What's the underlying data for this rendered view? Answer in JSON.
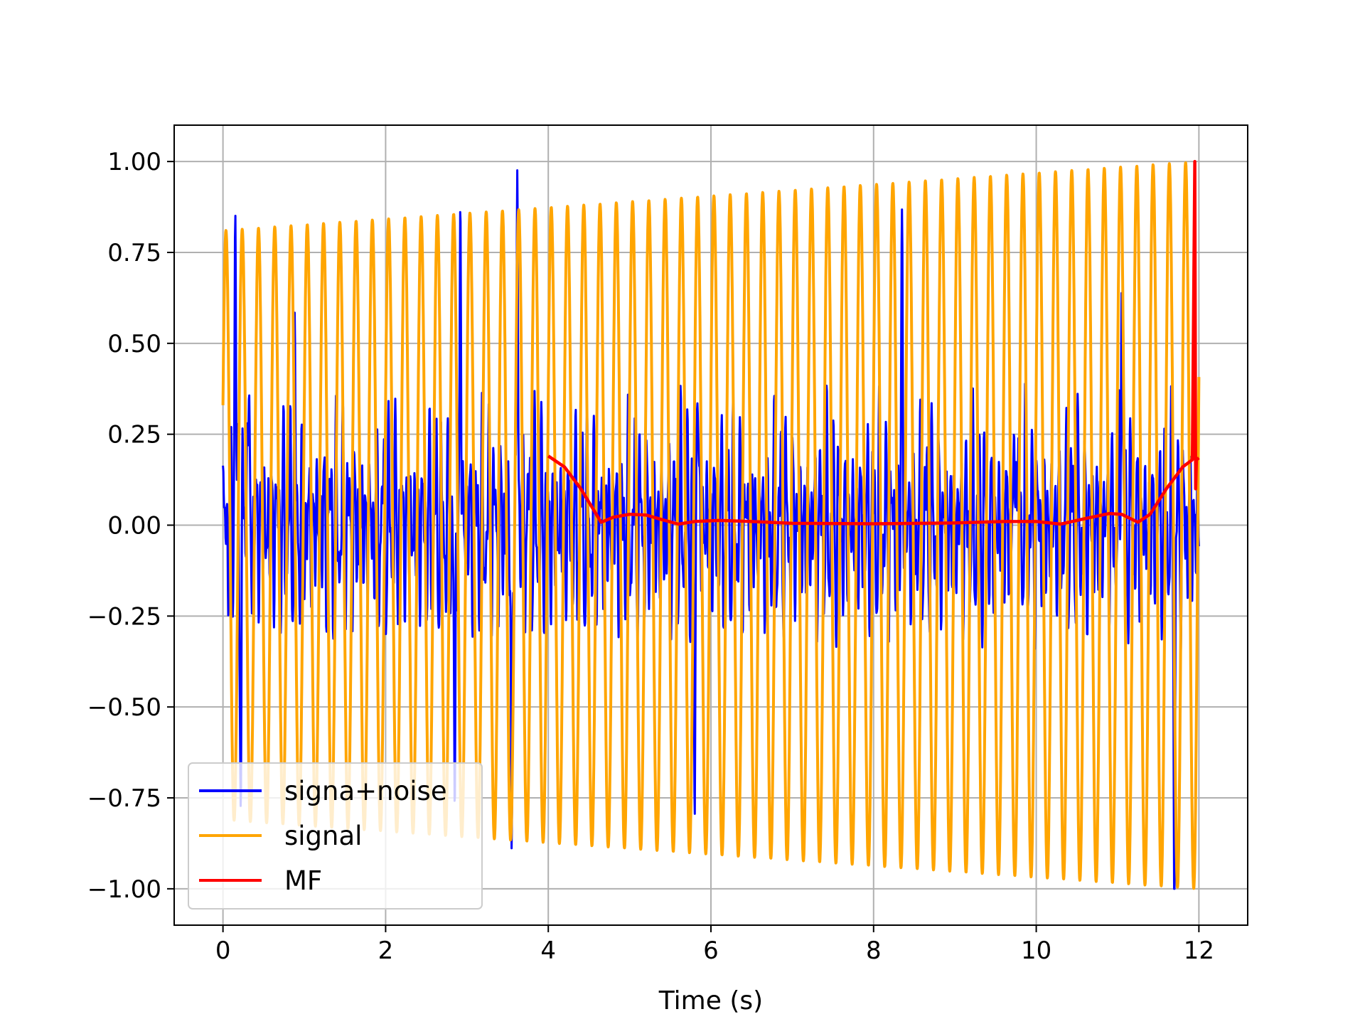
{
  "chart_data": {
    "type": "line",
    "title": "",
    "xlabel": "Time (s)",
    "ylabel": "",
    "xlim": [
      -0.6,
      12.6
    ],
    "ylim": [
      -1.1,
      1.1
    ],
    "x_ticks": [
      0,
      2,
      4,
      6,
      8,
      10,
      12
    ],
    "y_ticks": [
      1.0,
      0.75,
      0.5,
      0.25,
      0.0,
      -0.25,
      -0.5,
      -0.75,
      -1.0
    ],
    "x_tick_labels": [
      "0",
      "2",
      "4",
      "6",
      "8",
      "10",
      "12"
    ],
    "y_tick_labels": [
      "1.00",
      "0.75",
      "0.50",
      "0.25",
      "0.00",
      "−0.25",
      "−0.50",
      "−0.75",
      "−1.00"
    ],
    "grid": true,
    "legend_position": "lower-left",
    "series": [
      {
        "name": "signa+noise",
        "color": "#0000ff",
        "x_range": [
          0,
          12
        ],
        "style": "noisy oscillation with sparse spikes",
        "peaks": [
          {
            "x": 0.15,
            "y": 0.88
          },
          {
            "x": 0.3,
            "y": 0.49
          },
          {
            "x": 0.88,
            "y": 0.36
          },
          {
            "x": 2.92,
            "y": 0.84
          },
          {
            "x": 3.62,
            "y": 1.0
          },
          {
            "x": 5.83,
            "y": 0.59
          },
          {
            "x": 8.35,
            "y": 0.85
          },
          {
            "x": 9.75,
            "y": 0.45
          },
          {
            "x": 11.05,
            "y": 0.88
          }
        ],
        "troughs": [
          {
            "x": 0.22,
            "y": -0.58
          },
          {
            "x": 2.85,
            "y": -0.85
          },
          {
            "x": 3.55,
            "y": -0.95
          },
          {
            "x": 5.8,
            "y": -0.81
          },
          {
            "x": 11.7,
            "y": -0.95
          }
        ]
      },
      {
        "name": "signal",
        "color": "#ffa500",
        "x_range": [
          0,
          12
        ],
        "cycles": 60,
        "amplitude_start": 0.81,
        "amplitude_end": 1.0,
        "y_start": 0.33
      },
      {
        "name": "MF",
        "color": "#ff0000",
        "points": [
          [
            4.0,
            0.19
          ],
          [
            4.2,
            0.16
          ],
          [
            4.4,
            0.1
          ],
          [
            4.65,
            0.008
          ],
          [
            4.8,
            0.022
          ],
          [
            5.0,
            0.03
          ],
          [
            5.2,
            0.028
          ],
          [
            5.4,
            0.015
          ],
          [
            5.6,
            0.003
          ],
          [
            5.8,
            0.01
          ],
          [
            6.1,
            0.013
          ],
          [
            6.5,
            0.01
          ],
          [
            7.0,
            0.005
          ],
          [
            8.0,
            0.004
          ],
          [
            9.0,
            0.006
          ],
          [
            9.6,
            0.01
          ],
          [
            10.0,
            0.01
          ],
          [
            10.3,
            0.003
          ],
          [
            10.6,
            0.018
          ],
          [
            10.9,
            0.032
          ],
          [
            11.05,
            0.03
          ],
          [
            11.25,
            0.008
          ],
          [
            11.4,
            0.03
          ],
          [
            11.6,
            0.1
          ],
          [
            11.8,
            0.16
          ],
          [
            11.92,
            0.18
          ],
          [
            11.95,
            1.0
          ],
          [
            11.96,
            0.1
          ],
          [
            11.97,
            0.18
          ],
          [
            12.0,
            0.185
          ]
        ]
      }
    ]
  }
}
